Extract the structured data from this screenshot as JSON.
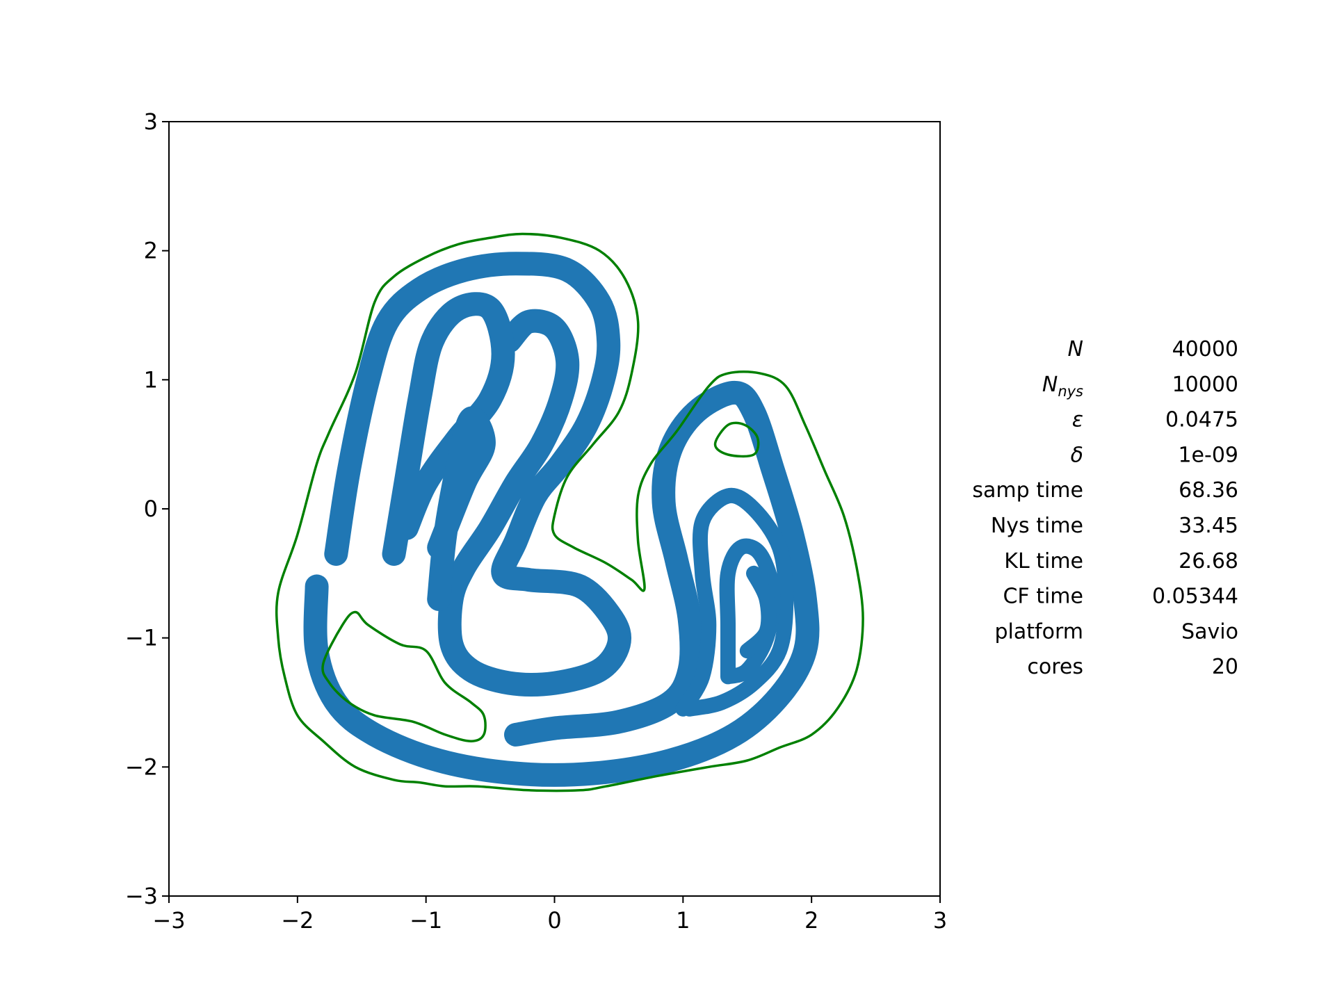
{
  "chart_data": {
    "type": "scatter",
    "title": "",
    "xlabel": "",
    "ylabel": "",
    "xlim": [
      -3,
      3
    ],
    "ylim": [
      -3,
      3
    ],
    "x_ticks": [
      -3,
      -2,
      -1,
      0,
      1,
      2,
      3
    ],
    "y_ticks": [
      -3,
      -2,
      -1,
      0,
      1,
      2,
      3
    ],
    "x_tick_labels": [
      "−3",
      "−2",
      "−1",
      "0",
      "1",
      "2",
      "3"
    ],
    "y_tick_labels": [
      "−3",
      "−2",
      "−1",
      "0",
      "1",
      "2",
      "3"
    ],
    "grid": false,
    "legend": "none",
    "colors": {
      "samples": "#2077b4",
      "contour": "#008000"
    },
    "contour": {
      "color": "#008000",
      "outer": [
        [
          -2.15,
          -0.65
        ],
        [
          -2.0,
          -0.2
        ],
        [
          -1.85,
          0.35
        ],
        [
          -1.75,
          0.6
        ],
        [
          -1.55,
          1.05
        ],
        [
          -1.4,
          1.6
        ],
        [
          -1.25,
          1.8
        ],
        [
          -1.0,
          1.95
        ],
        [
          -0.75,
          2.05
        ],
        [
          -0.5,
          2.1
        ],
        [
          -0.25,
          2.13
        ],
        [
          0.05,
          2.1
        ],
        [
          0.35,
          2.0
        ],
        [
          0.55,
          1.78
        ],
        [
          0.65,
          1.45
        ],
        [
          0.6,
          1.05
        ],
        [
          0.5,
          0.75
        ],
        [
          0.3,
          0.5
        ],
        [
          0.1,
          0.25
        ],
        [
          0.0,
          -0.05
        ],
        [
          0.0,
          -0.2
        ],
        [
          0.15,
          -0.3
        ],
        [
          0.4,
          -0.42
        ],
        [
          0.6,
          -0.55
        ],
        [
          0.7,
          -0.62
        ],
        [
          0.65,
          -0.25
        ],
        [
          0.65,
          0.1
        ],
        [
          0.75,
          0.35
        ],
        [
          0.95,
          0.6
        ],
        [
          1.2,
          0.95
        ],
        [
          1.35,
          1.05
        ],
        [
          1.6,
          1.05
        ],
        [
          1.8,
          0.95
        ],
        [
          1.95,
          0.65
        ],
        [
          2.1,
          0.3
        ],
        [
          2.25,
          -0.05
        ],
        [
          2.35,
          -0.45
        ],
        [
          2.4,
          -0.85
        ],
        [
          2.35,
          -1.25
        ],
        [
          2.2,
          -1.55
        ],
        [
          2.0,
          -1.75
        ],
        [
          1.75,
          -1.85
        ],
        [
          1.5,
          -1.95
        ],
        [
          1.2,
          -2.0
        ],
        [
          0.8,
          -2.07
        ],
        [
          0.4,
          -2.15
        ],
        [
          0.2,
          -2.18
        ],
        [
          -0.2,
          -2.18
        ],
        [
          -0.6,
          -2.15
        ],
        [
          -0.85,
          -2.15
        ],
        [
          -1.05,
          -2.12
        ],
        [
          -1.25,
          -2.1
        ],
        [
          -1.55,
          -2.0
        ],
        [
          -1.8,
          -1.8
        ],
        [
          -2.0,
          -1.6
        ],
        [
          -2.1,
          -1.3
        ],
        [
          -2.15,
          -1.0
        ]
      ],
      "inner1": [
        [
          -1.8,
          -1.2
        ],
        [
          -1.65,
          -0.9
        ],
        [
          -1.55,
          -0.8
        ],
        [
          -1.45,
          -0.9
        ],
        [
          -1.2,
          -1.05
        ],
        [
          -1.0,
          -1.1
        ],
        [
          -0.85,
          -1.35
        ],
        [
          -0.65,
          -1.5
        ],
        [
          -0.55,
          -1.6
        ],
        [
          -0.55,
          -1.75
        ],
        [
          -0.65,
          -1.8
        ],
        [
          -0.85,
          -1.75
        ],
        [
          -1.1,
          -1.65
        ],
        [
          -1.4,
          -1.6
        ],
        [
          -1.6,
          -1.5
        ],
        [
          -1.75,
          -1.35
        ]
      ],
      "inner2": [
        [
          1.25,
          0.5
        ],
        [
          1.35,
          0.65
        ],
        [
          1.48,
          0.65
        ],
        [
          1.58,
          0.55
        ],
        [
          1.55,
          0.42
        ],
        [
          1.35,
          0.42
        ]
      ]
    },
    "sample_paths": [
      [
        [
          -1.7,
          -0.35
        ],
        [
          -1.6,
          0.3
        ],
        [
          -1.45,
          1.0
        ],
        [
          -1.3,
          1.45
        ],
        [
          -1.05,
          1.7
        ],
        [
          -0.7,
          1.85
        ],
        [
          -0.3,
          1.9
        ],
        [
          0.1,
          1.85
        ],
        [
          0.35,
          1.6
        ],
        [
          0.42,
          1.3
        ],
        [
          0.38,
          1.0
        ],
        [
          0.25,
          0.65
        ],
        [
          0.05,
          0.35
        ],
        [
          -0.15,
          0.1
        ],
        [
          -0.3,
          -0.25
        ],
        [
          -0.4,
          -0.5
        ],
        [
          -0.2,
          -0.55
        ],
        [
          0.2,
          -0.6
        ],
        [
          0.45,
          -0.85
        ],
        [
          0.5,
          -1.05
        ],
        [
          0.35,
          -1.25
        ],
        [
          0.0,
          -1.35
        ],
        [
          -0.35,
          -1.35
        ],
        [
          -0.65,
          -1.25
        ],
        [
          -0.8,
          -1.05
        ],
        [
          -0.8,
          -0.7
        ],
        [
          -0.7,
          -0.45
        ],
        [
          -0.5,
          -0.15
        ],
        [
          -0.3,
          0.2
        ],
        [
          -0.1,
          0.5
        ],
        [
          0.05,
          0.85
        ],
        [
          0.1,
          1.15
        ],
        [
          0.0,
          1.4
        ],
        [
          -0.2,
          1.45
        ],
        [
          -0.35,
          1.3
        ]
      ],
      [
        [
          -1.25,
          -0.35
        ],
        [
          -1.15,
          0.25
        ],
        [
          -1.05,
          0.85
        ],
        [
          -0.95,
          1.3
        ],
        [
          -0.75,
          1.55
        ],
        [
          -0.5,
          1.55
        ],
        [
          -0.4,
          1.2
        ],
        [
          -0.5,
          0.85
        ],
        [
          -0.75,
          0.55
        ],
        [
          -1.0,
          0.2
        ],
        [
          -1.15,
          -0.15
        ]
      ],
      [
        [
          -0.9,
          -0.7
        ],
        [
          -0.85,
          -0.2
        ],
        [
          -0.75,
          0.35
        ],
        [
          -0.65,
          0.7
        ],
        [
          -0.55,
          0.5
        ],
        [
          -0.7,
          0.2
        ],
        [
          -0.9,
          -0.3
        ]
      ],
      [
        [
          -1.85,
          -0.6
        ],
        [
          -1.85,
          -1.1
        ],
        [
          -1.7,
          -1.5
        ],
        [
          -1.4,
          -1.75
        ],
        [
          -0.9,
          -1.95
        ],
        [
          -0.3,
          -2.05
        ],
        [
          0.3,
          -2.05
        ],
        [
          0.9,
          -1.95
        ],
        [
          1.4,
          -1.75
        ],
        [
          1.75,
          -1.45
        ],
        [
          1.95,
          -1.1
        ],
        [
          1.95,
          -0.7
        ],
        [
          1.85,
          -0.2
        ],
        [
          1.7,
          0.3
        ],
        [
          1.55,
          0.75
        ],
        [
          1.4,
          0.9
        ],
        [
          1.1,
          0.75
        ],
        [
          0.9,
          0.45
        ],
        [
          0.85,
          0.05
        ],
        [
          0.95,
          -0.4
        ],
        [
          1.05,
          -0.85
        ],
        [
          1.05,
          -1.25
        ],
        [
          0.9,
          -1.5
        ],
        [
          0.5,
          -1.65
        ],
        [
          0.0,
          -1.7
        ],
        [
          -0.3,
          -1.75
        ]
      ],
      [
        [
          1.0,
          -1.55
        ],
        [
          1.15,
          -1.3
        ],
        [
          1.2,
          -0.9
        ],
        [
          1.15,
          -0.5
        ],
        [
          1.15,
          -0.1
        ],
        [
          1.35,
          0.1
        ],
        [
          1.55,
          0.0
        ],
        [
          1.75,
          -0.3
        ],
        [
          1.8,
          -0.7
        ],
        [
          1.75,
          -1.1
        ],
        [
          1.55,
          -1.35
        ],
        [
          1.3,
          -1.5
        ],
        [
          1.05,
          -1.55
        ]
      ],
      [
        [
          1.35,
          -1.3
        ],
        [
          1.35,
          -0.9
        ],
        [
          1.35,
          -0.5
        ],
        [
          1.45,
          -0.3
        ],
        [
          1.6,
          -0.35
        ],
        [
          1.7,
          -0.65
        ],
        [
          1.65,
          -1.0
        ],
        [
          1.5,
          -1.25
        ],
        [
          1.35,
          -1.3
        ]
      ],
      [
        [
          1.55,
          -0.5
        ],
        [
          1.65,
          -0.7
        ],
        [
          1.65,
          -0.95
        ],
        [
          1.5,
          -1.1
        ]
      ]
    ]
  },
  "info_table": {
    "rows": [
      {
        "label": "N",
        "value": "40000"
      },
      {
        "label": "N",
        "label_sub": "nys",
        "value": "10000"
      },
      {
        "label": "ε",
        "value": "0.0475"
      },
      {
        "label": "δ",
        "value": "1e-09"
      },
      {
        "label": "samp time",
        "value": "68.36"
      },
      {
        "label": "Nys time",
        "value": "33.45"
      },
      {
        "label": "KL time",
        "value": "26.68"
      },
      {
        "label": "CF time",
        "value": "0.05344"
      },
      {
        "label": "platform",
        "value": "Savio"
      },
      {
        "label": "cores",
        "value": "20"
      }
    ]
  }
}
